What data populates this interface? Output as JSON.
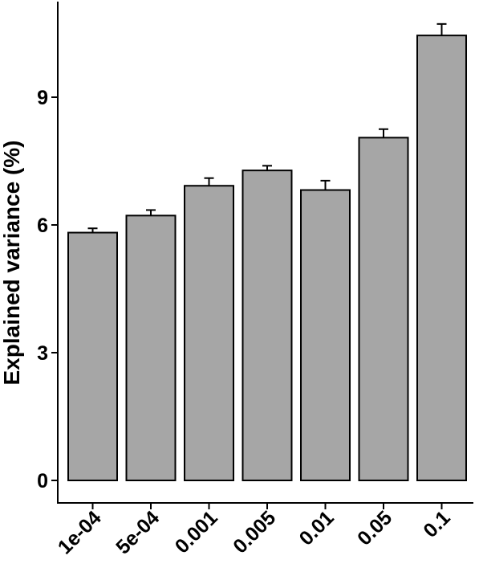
{
  "chart_data": {
    "type": "bar",
    "categories": [
      "1e-04",
      "5e-04",
      "0.001",
      "0.005",
      "0.01",
      "0.05",
      "0.1"
    ],
    "values": [
      5.82,
      6.22,
      6.92,
      7.28,
      6.82,
      8.05,
      10.45
    ],
    "errors": [
      0.1,
      0.13,
      0.18,
      0.11,
      0.22,
      0.2,
      0.27
    ],
    "title": "",
    "xlabel": "",
    "ylabel": "Explained variance (%)",
    "ylim": [
      0,
      11.1
    ],
    "yticks": [
      0,
      3,
      6,
      9
    ],
    "bar_color": "#a6a6a6",
    "grid": false,
    "legend": "none"
  }
}
